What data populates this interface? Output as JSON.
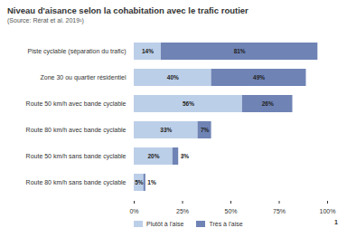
{
  "chart_data": {
    "type": "bar",
    "orientation": "horizontal",
    "stacked": true,
    "data_labels": true,
    "grid": false,
    "title": "Niveau d'aisance selon la cohabitation avec le trafic routier",
    "subtitle": "(Source: Rérat et al. 2019¹)",
    "annotations": [
      "1"
    ],
    "legend": "bottom",
    "categories": [
      "Piste cyclable (séparation du trafic)",
      "Zone 30 ou quartier résidentiel",
      "Route 50 km/h avec bande cyclable",
      "Route 80 km/h avec bande cyclable",
      "Route 50 km/h sans bande cyclable",
      "Route 80 km/h sans bande cyclable"
    ],
    "series": [
      {
        "name": "Plutôt à l'aise",
        "color": "#bccfe8",
        "values": [
          14,
          40,
          56,
          33,
          20,
          5
        ],
        "value_labels": [
          "14%",
          "40%",
          "56%",
          "33%",
          "20%",
          "5%"
        ]
      },
      {
        "name": "Très à l'aise",
        "color": "#6f83b5",
        "values": [
          81,
          49,
          26,
          7,
          3,
          1
        ],
        "value_labels": [
          "81%",
          "49%",
          "26%",
          "7%",
          "3%",
          "1%"
        ]
      }
    ],
    "xlim": [
      0,
      100
    ],
    "xticks": [
      {
        "value": 0,
        "label": "0%"
      },
      {
        "value": 25,
        "label": "25%"
      },
      {
        "value": 50,
        "label": "50%"
      },
      {
        "value": 75,
        "label": "75%"
      },
      {
        "value": 100,
        "label": "100%"
      }
    ]
  }
}
